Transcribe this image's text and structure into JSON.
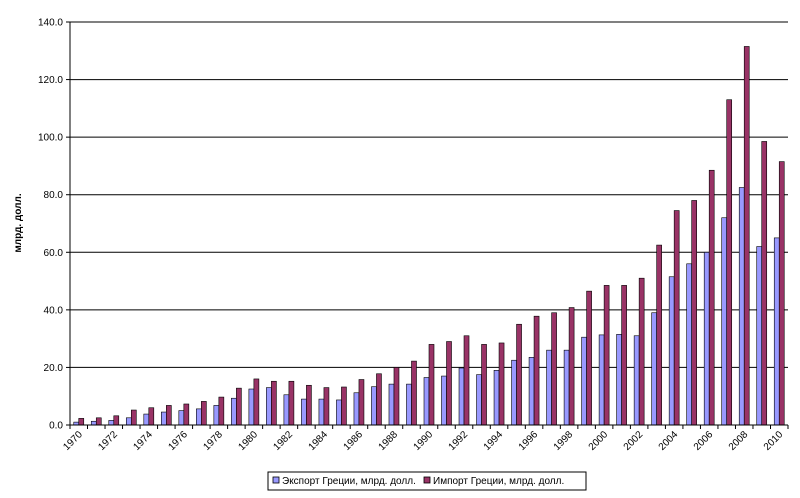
{
  "chart_data": {
    "type": "bar",
    "title": "",
    "xlabel": "",
    "ylabel": "млрд. долл.",
    "ylim": [
      0,
      140
    ],
    "yticks": [
      "0.0",
      "20.0",
      "40.0",
      "60.0",
      "80.0",
      "100.0",
      "120.0",
      "140.0"
    ],
    "grid": true,
    "legend_position": "bottom-center",
    "categories": [
      "1970",
      "1971",
      "1972",
      "1973",
      "1974",
      "1975",
      "1976",
      "1977",
      "1978",
      "1979",
      "1980",
      "1981",
      "1982",
      "1983",
      "1984",
      "1985",
      "1986",
      "1987",
      "1988",
      "1989",
      "1990",
      "1991",
      "1992",
      "1993",
      "1994",
      "1995",
      "1996",
      "1997",
      "1998",
      "1999",
      "2000",
      "2001",
      "2002",
      "2003",
      "2004",
      "2005",
      "2006",
      "2007",
      "2008",
      "2009",
      "2010"
    ],
    "xtick_labels": [
      "1970",
      "",
      "1972",
      "",
      "1974",
      "",
      "1976",
      "",
      "1978",
      "",
      "1980",
      "",
      "1982",
      "",
      "1984",
      "",
      "1986",
      "",
      "1988",
      "",
      "1990",
      "",
      "1992",
      "",
      "1994",
      "",
      "1996",
      "",
      "1998",
      "",
      "2000",
      "",
      "2002",
      "",
      "2004",
      "",
      "2006",
      "",
      "2008",
      "",
      "2010"
    ],
    "series": [
      {
        "name": "Экспорт Греции, млрд. долл.",
        "color": "#9999ff",
        "values": [
          1.0,
          1.3,
          1.6,
          2.5,
          3.8,
          4.5,
          5.0,
          5.6,
          6.8,
          9.3,
          12.5,
          13.0,
          10.5,
          9.0,
          9.0,
          8.7,
          11.2,
          13.3,
          14.2,
          14.2,
          16.5,
          17.0,
          19.8,
          17.5,
          19.0,
          22.5,
          23.5,
          26.0,
          26.0,
          30.5,
          31.3,
          31.5,
          31.0,
          39.0,
          51.5,
          56.0,
          60.0,
          72.0,
          82.5,
          62.0,
          65.0
        ]
      },
      {
        "name": "Импорт Греции, млрд. долл.",
        "color": "#993366",
        "values": [
          2.3,
          2.5,
          3.2,
          5.2,
          6.0,
          6.8,
          7.3,
          8.2,
          9.7,
          12.8,
          16.0,
          15.2,
          15.2,
          13.8,
          13.0,
          13.2,
          15.8,
          17.8,
          20.0,
          22.2,
          28.0,
          29.0,
          31.0,
          28.0,
          28.5,
          35.0,
          37.8,
          39.0,
          40.8,
          46.5,
          48.5,
          48.5,
          51.0,
          62.5,
          74.5,
          78.0,
          88.5,
          113.0,
          131.5,
          98.5,
          91.5
        ]
      }
    ]
  },
  "colors": {
    "axis": "#000000",
    "grid": "#000000",
    "bar_outline": "#000000"
  }
}
